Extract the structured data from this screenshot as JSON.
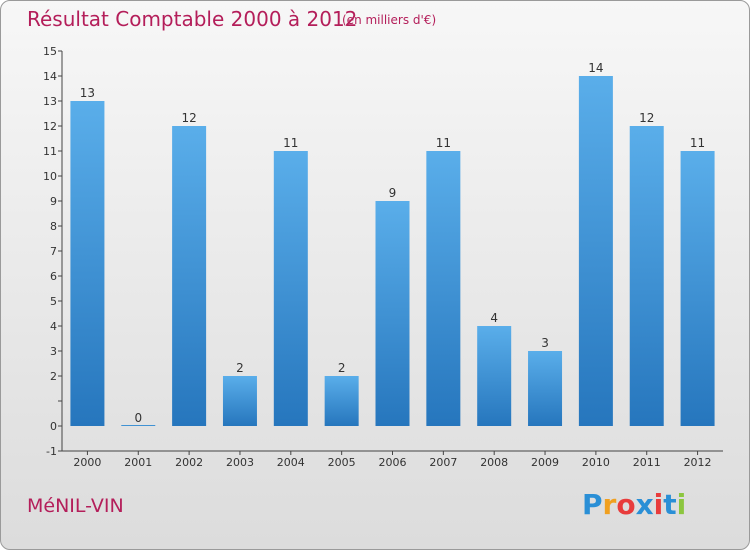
{
  "title": "Résultat Comptable 2000 à 2012",
  "subtitle": "(en milliers d'€)",
  "commune": "MéNIL-VIN",
  "brand": {
    "letters": [
      "P",
      "r",
      "o",
      "x",
      "i",
      "t",
      "i"
    ],
    "colors": [
      "#2a8fd6",
      "#f0a020",
      "#e83c3c",
      "#2a8fd6",
      "#e83c3c",
      "#2a8fd6",
      "#8cc63f"
    ]
  },
  "colors": {
    "bar": "#4a9be0",
    "bar_dark": "#2a78c0",
    "title": "#b41e5a"
  },
  "chart_data": {
    "type": "bar",
    "categories": [
      "2000",
      "2001",
      "2002",
      "2003",
      "2004",
      "2005",
      "2006",
      "2007",
      "2008",
      "2009",
      "2010",
      "2011",
      "2012"
    ],
    "values": [
      13,
      0,
      12,
      2,
      11,
      2,
      9,
      11,
      4,
      3,
      14,
      12,
      11
    ],
    "ylim": [
      -1,
      15
    ],
    "yticks": [
      -1,
      0,
      1,
      2,
      3,
      4,
      5,
      6,
      7,
      8,
      9,
      10,
      11,
      12,
      13,
      14,
      15
    ],
    "ytick_labels": [
      "-1",
      "0",
      "",
      "2",
      "3",
      "4",
      "5",
      "6",
      "7",
      "8",
      "9",
      "10",
      "11",
      "12",
      "13",
      "14",
      "15"
    ],
    "grid": false
  }
}
